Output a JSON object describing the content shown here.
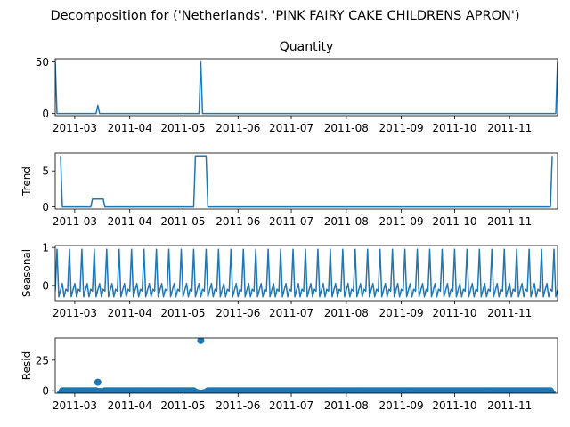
{
  "figure": {
    "suptitle": "Decomposition for ('Netherlands', 'PINK FAIRY CAKE CHILDRENS APRON')"
  },
  "colors": {
    "series": "#1f77b4"
  },
  "x_axis": {
    "start": "2011-02-18",
    "end": "2011-11-28",
    "tick_labels": [
      "2011-03",
      "2011-04",
      "2011-05",
      "2011-06",
      "2011-07",
      "2011-08",
      "2011-09",
      "2011-10",
      "2011-11"
    ],
    "tick_dates": [
      "2011-03-01",
      "2011-04-01",
      "2011-05-01",
      "2011-06-01",
      "2011-07-01",
      "2011-08-01",
      "2011-09-01",
      "2011-10-01",
      "2011-11-01"
    ]
  },
  "chart_data": [
    {
      "type": "line",
      "title": "Quantity",
      "ylabel": "",
      "ylim": [
        -2,
        53
      ],
      "yticks": [
        0,
        50
      ],
      "series": [
        {
          "points": [
            [
              "2011-02-18",
              50
            ],
            [
              "2011-02-19",
              0
            ],
            [
              "2011-03-13",
              0
            ],
            [
              "2011-03-14",
              8
            ],
            [
              "2011-03-15",
              0
            ],
            [
              "2011-05-10",
              0
            ],
            [
              "2011-05-11",
              50
            ],
            [
              "2011-05-12",
              0
            ],
            [
              "2011-11-27",
              0
            ],
            [
              "2011-11-28",
              50
            ]
          ]
        }
      ]
    },
    {
      "type": "line",
      "title": "",
      "ylabel": "Trend",
      "ylim": [
        -0.3,
        7.5
      ],
      "yticks": [
        0,
        5
      ],
      "series": [
        {
          "points": [
            [
              "2011-02-21",
              7.1
            ],
            [
              "2011-02-22",
              0
            ],
            [
              "2011-03-10",
              0
            ],
            [
              "2011-03-11",
              1.1
            ],
            [
              "2011-03-17",
              1.1
            ],
            [
              "2011-03-18",
              0
            ],
            [
              "2011-05-07",
              0
            ],
            [
              "2011-05-08",
              7.1
            ],
            [
              "2011-05-14",
              7.1
            ],
            [
              "2011-05-15",
              0
            ],
            [
              "2011-11-24",
              0
            ],
            [
              "2011-11-25",
              7.1
            ]
          ]
        }
      ]
    },
    {
      "type": "line",
      "title": "",
      "ylabel": "Seasonal",
      "ylim": [
        -0.4,
        1.05
      ],
      "yticks": [
        0,
        1
      ],
      "series": [
        {
          "seasonal_period_days": 7,
          "seasonal_pattern": [
            -0.15,
            0.95,
            -0.3,
            -0.12,
            0.05,
            -0.3,
            -0.1
          ]
        }
      ]
    },
    {
      "type": "scatter",
      "title": "",
      "ylabel": "Resid",
      "ylim": [
        -2,
        43
      ],
      "yticks": [
        0,
        25
      ],
      "baseline": 0,
      "series": [
        {
          "points": [
            [
              "2011-02-21",
              -2
            ],
            [
              "2011-03-14",
              7
            ],
            [
              "2011-03-15",
              -0.5
            ],
            [
              "2011-03-16",
              -0.7
            ],
            [
              "2011-03-17",
              -0.8
            ],
            [
              "2011-05-08",
              -1.2
            ],
            [
              "2011-05-09",
              -1.5
            ],
            [
              "2011-05-10",
              -1.8
            ],
            [
              "2011-05-11",
              41
            ],
            [
              "2011-05-12",
              -1.8
            ],
            [
              "2011-05-13",
              -1.5
            ],
            [
              "2011-05-14",
              -1.5
            ],
            [
              "2011-11-25",
              -2
            ]
          ]
        }
      ]
    }
  ]
}
